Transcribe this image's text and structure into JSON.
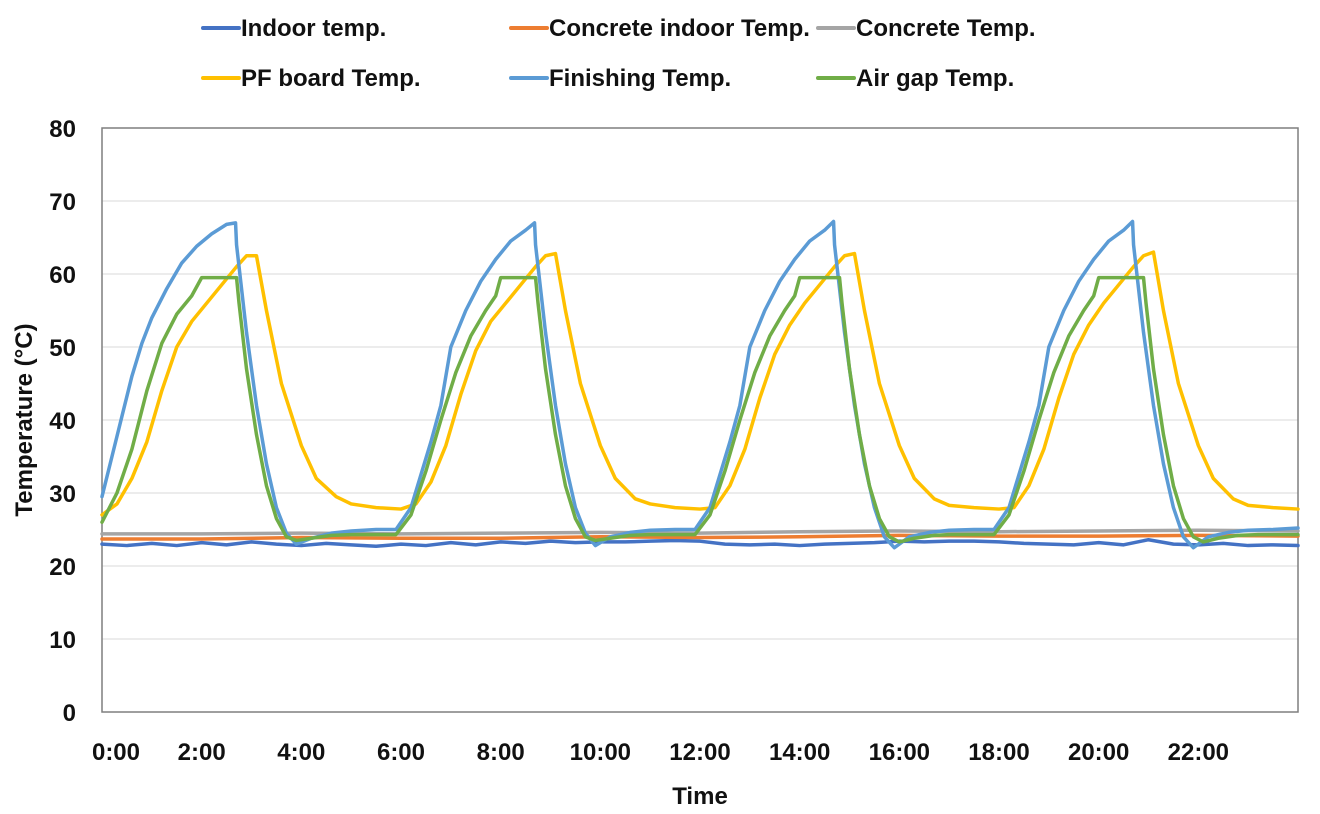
{
  "chart_data": {
    "type": "line",
    "title": "",
    "xlabel": "Time",
    "ylabel": "Temperature (°C)",
    "xlim": [
      0,
      24
    ],
    "ylim": [
      0,
      80
    ],
    "grid": true,
    "legend_position": "top",
    "x_ticks": [
      {
        "value": 0,
        "label": "0:00"
      },
      {
        "value": 2,
        "label": "2:00"
      },
      {
        "value": 4,
        "label": "4:00"
      },
      {
        "value": 6,
        "label": "6:00"
      },
      {
        "value": 8,
        "label": "8:00"
      },
      {
        "value": 10,
        "label": "10:00"
      },
      {
        "value": 12,
        "label": "12:00"
      },
      {
        "value": 14,
        "label": "14:00"
      },
      {
        "value": 16,
        "label": "16:00"
      },
      {
        "value": 18,
        "label": "18:00"
      },
      {
        "value": 20,
        "label": "20:00"
      },
      {
        "value": 22,
        "label": "22:00"
      }
    ],
    "y_ticks": [
      0,
      10,
      20,
      30,
      40,
      50,
      60,
      70,
      80
    ],
    "series": [
      {
        "name": "Indoor temp.",
        "color": "#4472c4",
        "x": [
          0,
          0.5,
          1,
          1.5,
          2,
          2.5,
          3,
          3.5,
          4,
          4.5,
          5,
          5.5,
          6,
          6.5,
          7,
          7.5,
          8,
          8.5,
          9,
          9.5,
          10,
          10.5,
          11,
          11.5,
          12,
          12.5,
          13,
          13.5,
          14,
          14.5,
          15,
          15.5,
          16,
          16.5,
          17,
          17.5,
          18,
          18.5,
          19,
          19.5,
          20,
          20.5,
          21,
          21.5,
          22,
          22.5,
          23,
          23.5,
          24
        ],
        "y": [
          23.0,
          22.8,
          23.1,
          22.8,
          23.2,
          22.9,
          23.3,
          23.0,
          22.8,
          23.1,
          22.9,
          22.7,
          23.0,
          22.8,
          23.2,
          22.9,
          23.3,
          23.1,
          23.4,
          23.2,
          23.3,
          23.3,
          23.4,
          23.5,
          23.4,
          23.0,
          22.9,
          23.0,
          22.8,
          23.0,
          23.1,
          23.2,
          23.4,
          23.3,
          23.4,
          23.4,
          23.3,
          23.1,
          23.0,
          22.9,
          23.2,
          22.9,
          23.6,
          23.0,
          22.9,
          23.1,
          22.8,
          22.9,
          22.8
        ]
      },
      {
        "name": "Concrete indoor Temp.",
        "color": "#ed7d31",
        "x": [
          0,
          2,
          4,
          6,
          8,
          10,
          12,
          14,
          16,
          18,
          20,
          22,
          24
        ],
        "y": [
          23.7,
          23.7,
          23.9,
          23.8,
          23.8,
          24.0,
          23.9,
          24.0,
          24.2,
          24.1,
          24.1,
          24.2,
          24.1
        ]
      },
      {
        "name": "Concrete Temp.",
        "color": "#a5a5a5",
        "x": [
          0,
          2,
          4,
          6,
          8,
          10,
          12,
          14,
          16,
          18,
          20,
          22,
          24
        ],
        "y": [
          24.4,
          24.4,
          24.5,
          24.4,
          24.5,
          24.6,
          24.5,
          24.7,
          24.8,
          24.7,
          24.8,
          24.9,
          24.8
        ]
      },
      {
        "name": "PF board Temp.",
        "color": "#ffc000",
        "x": [
          0,
          0.3,
          0.6,
          0.9,
          1.2,
          1.5,
          1.8,
          2.1,
          2.4,
          2.7,
          2.9,
          3.1,
          3.3,
          3.6,
          4.0,
          4.3,
          4.7,
          5.0,
          5.5,
          6.0,
          6.3,
          6.6,
          6.9,
          7.2,
          7.5,
          7.8,
          8.1,
          8.4,
          8.7,
          8.9,
          9.1,
          9.3,
          9.6,
          10.0,
          10.3,
          10.7,
          11.0,
          11.5,
          12.0,
          12.3,
          12.6,
          12.9,
          13.2,
          13.5,
          13.8,
          14.1,
          14.4,
          14.7,
          14.9,
          15.1,
          15.3,
          15.6,
          16.0,
          16.3,
          16.7,
          17.0,
          17.5,
          18.0,
          18.3,
          18.6,
          18.9,
          19.2,
          19.5,
          19.8,
          20.1,
          20.4,
          20.7,
          20.9,
          21.1,
          21.3,
          21.6,
          22.0,
          22.3,
          22.7,
          23.0,
          23.5,
          24.0
        ],
        "y": [
          27.0,
          28.5,
          32.0,
          37.0,
          44.0,
          50.0,
          53.5,
          56.0,
          58.5,
          61.0,
          62.5,
          62.5,
          55.0,
          45.0,
          36.5,
          32.0,
          29.5,
          28.5,
          28.0,
          27.8,
          28.5,
          31.5,
          36.5,
          43.5,
          49.5,
          53.5,
          56.0,
          58.5,
          61.0,
          62.5,
          62.8,
          55.0,
          45.0,
          36.5,
          32.0,
          29.2,
          28.5,
          28.0,
          27.8,
          28.0,
          31.0,
          36.0,
          43.0,
          49.0,
          53.0,
          56.0,
          58.5,
          61.0,
          62.5,
          62.8,
          55.0,
          45.0,
          36.5,
          32.0,
          29.2,
          28.3,
          28.0,
          27.8,
          28.0,
          31.0,
          36.0,
          43.0,
          49.0,
          53.0,
          56.0,
          58.5,
          61.0,
          62.5,
          63.0,
          55.0,
          45.0,
          36.5,
          32.0,
          29.2,
          28.3,
          28.0,
          27.8
        ]
      },
      {
        "name": "Finishing Temp.",
        "color": "#5b9bd5",
        "x": [
          0,
          0.2,
          0.4,
          0.6,
          0.8,
          1.0,
          1.3,
          1.6,
          1.9,
          2.2,
          2.5,
          2.68,
          2.7,
          2.9,
          3.1,
          3.3,
          3.5,
          3.7,
          3.9,
          4.2,
          4.6,
          5.0,
          5.5,
          5.9,
          6.2,
          6.4,
          6.6,
          6.8,
          7.0,
          7.3,
          7.6,
          7.9,
          8.2,
          8.5,
          8.68,
          8.7,
          8.9,
          9.1,
          9.3,
          9.5,
          9.7,
          9.9,
          10.2,
          10.6,
          11.0,
          11.5,
          11.9,
          12.2,
          12.4,
          12.6,
          12.8,
          13.0,
          13.3,
          13.6,
          13.9,
          14.2,
          14.5,
          14.68,
          14.7,
          14.9,
          15.1,
          15.3,
          15.5,
          15.7,
          15.9,
          16.2,
          16.6,
          17.0,
          17.5,
          17.9,
          18.2,
          18.4,
          18.6,
          18.8,
          19.0,
          19.3,
          19.6,
          19.9,
          20.2,
          20.5,
          20.68,
          20.7,
          20.9,
          21.1,
          21.3,
          21.5,
          21.7,
          21.9,
          22.2,
          22.6,
          23.0,
          23.5,
          24.0
        ],
        "y": [
          29.5,
          35.0,
          40.5,
          46.0,
          50.5,
          54.0,
          58.0,
          61.5,
          63.8,
          65.5,
          66.8,
          67.0,
          64.0,
          52.0,
          42.0,
          34.0,
          28.0,
          24.5,
          23.0,
          23.8,
          24.5,
          24.8,
          25.0,
          25.0,
          28.0,
          32.5,
          37.0,
          42.0,
          50.0,
          55.0,
          59.0,
          62.0,
          64.5,
          66.0,
          67.0,
          64.0,
          52.0,
          42.0,
          34.0,
          28.0,
          24.5,
          22.8,
          24.0,
          24.6,
          24.9,
          25.0,
          25.0,
          28.0,
          32.5,
          37.0,
          42.0,
          50.0,
          55.0,
          59.0,
          62.0,
          64.5,
          66.0,
          67.2,
          64.0,
          52.0,
          42.0,
          34.0,
          28.0,
          24.0,
          22.5,
          24.0,
          24.6,
          24.9,
          25.0,
          25.0,
          28.0,
          32.5,
          37.0,
          42.0,
          50.0,
          55.0,
          59.0,
          62.0,
          64.5,
          66.0,
          67.2,
          64.0,
          52.0,
          42.0,
          34.0,
          28.0,
          24.0,
          22.5,
          24.0,
          24.6,
          24.9,
          25.0,
          25.2
        ]
      },
      {
        "name": "Air gap Temp.",
        "color": "#70ad47",
        "x": [
          0,
          0.3,
          0.6,
          0.9,
          1.2,
          1.5,
          1.8,
          2.0,
          2.7,
          2.75,
          2.9,
          3.1,
          3.3,
          3.5,
          3.7,
          3.9,
          4.2,
          4.6,
          5.0,
          5.5,
          5.9,
          6.2,
          6.5,
          6.8,
          7.1,
          7.4,
          7.7,
          7.9,
          8.0,
          8.7,
          8.75,
          8.9,
          9.1,
          9.3,
          9.5,
          9.7,
          9.9,
          10.2,
          10.6,
          11.0,
          11.5,
          11.9,
          12.2,
          12.5,
          12.8,
          13.1,
          13.4,
          13.7,
          13.9,
          14.0,
          14.8,
          14.85,
          15.0,
          15.2,
          15.4,
          15.6,
          15.8,
          16.0,
          16.3,
          16.7,
          17.0,
          17.5,
          17.9,
          18.2,
          18.5,
          18.8,
          19.1,
          19.4,
          19.7,
          19.9,
          20.0,
          20.9,
          20.95,
          21.1,
          21.3,
          21.5,
          21.7,
          21.9,
          22.1,
          22.4,
          22.8,
          23.2,
          23.6,
          24.0
        ],
        "y": [
          26.0,
          30.0,
          36.0,
          44.0,
          50.5,
          54.5,
          57.0,
          59.5,
          59.5,
          56.0,
          47.0,
          38.0,
          31.0,
          26.5,
          24.0,
          23.5,
          23.8,
          24.2,
          24.3,
          24.3,
          24.3,
          27.0,
          33.0,
          40.0,
          46.5,
          51.5,
          55.0,
          57.0,
          59.5,
          59.5,
          56.0,
          47.0,
          38.0,
          31.0,
          26.5,
          24.0,
          23.5,
          23.8,
          24.2,
          24.3,
          24.3,
          24.3,
          27.0,
          33.0,
          40.0,
          46.5,
          51.5,
          55.0,
          57.0,
          59.5,
          59.5,
          56.0,
          47.0,
          38.0,
          31.0,
          26.5,
          24.0,
          23.3,
          23.8,
          24.2,
          24.3,
          24.3,
          24.3,
          27.0,
          33.0,
          40.0,
          46.5,
          51.5,
          55.0,
          57.0,
          59.5,
          59.5,
          56.0,
          47.0,
          38.0,
          31.0,
          26.5,
          24.0,
          23.3,
          23.8,
          24.2,
          24.3,
          24.3,
          24.3
        ]
      }
    ]
  }
}
